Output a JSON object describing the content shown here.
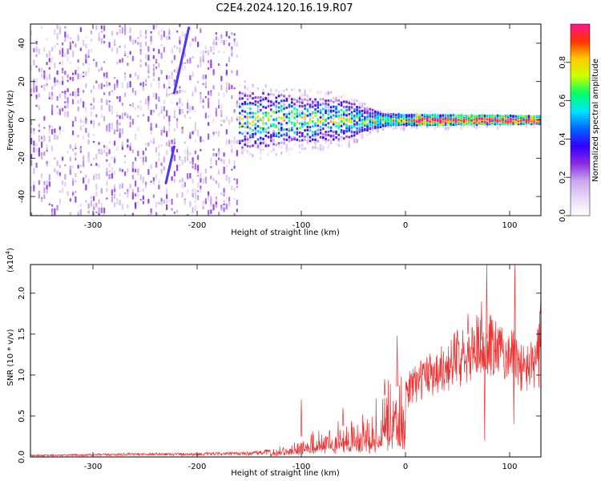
{
  "title": "C2E4.2024.120.16.19.R07",
  "chart_data": [
    {
      "type": "heatmap",
      "xlabel": "Height of straight line (km)",
      "ylabel": "Frequency (Hz)",
      "xlim": [
        -360,
        130
      ],
      "ylim": [
        -50,
        50
      ],
      "x_ticks": [
        -300,
        -200,
        -100,
        0,
        100
      ],
      "y_ticks": [
        -40,
        -20,
        0,
        20,
        40
      ],
      "colorbar": {
        "label": "Normalized spectral amplitude",
        "range": [
          0.0,
          1.0
        ],
        "ticks": [
          0.0,
          0.2,
          0.4,
          0.6,
          0.8
        ],
        "colormap": [
          "#ffffff",
          "#e8d8f6",
          "#c9a6ee",
          "#8a2be2",
          "#3300ff",
          "#0066ff",
          "#00e5ff",
          "#00ff66",
          "#ccff00",
          "#ffcc00",
          "#ff3300",
          "#ff1493"
        ]
      },
      "features": {
        "noise_region_x": [
          -360,
          -160
        ],
        "signal_band_center_hz": 0,
        "signal_band_halfwidth_hz": [
          [
            -160,
            15
          ],
          [
            -60,
            10
          ],
          [
            -20,
            3
          ],
          [
            130,
            2
          ]
        ],
        "streaks": [
          {
            "x": [
              -208,
              -222
            ],
            "y": [
              48,
              14
            ]
          },
          {
            "x": [
              -222,
              -230
            ],
            "y": [
              -14,
              -33
            ]
          }
        ]
      }
    },
    {
      "type": "line",
      "xlabel": "Height of straight line (km)",
      "ylabel": "SNR (10 * v/v)",
      "y_exponent_label": "(x10",
      "y_exponent_power": "4",
      "y_exponent_close": ")",
      "xlim": [
        -360,
        130
      ],
      "ylim": [
        0,
        2.35
      ],
      "x_ticks": [
        -300,
        -200,
        -100,
        0,
        100
      ],
      "y_ticks": [
        "0.0",
        "0.5",
        "1.0",
        "1.5",
        "2.0"
      ],
      "color": "#ee3333",
      "grid": false,
      "series": [
        {
          "x": [
            -360,
            -300,
            -250,
            -200,
            -150,
            -125,
            -115,
            -100,
            -90,
            -80,
            -70,
            -60,
            -50,
            -40,
            -30,
            -20,
            -15,
            -10,
            -5,
            0,
            5,
            10,
            20,
            30,
            40,
            50,
            60,
            70,
            76,
            80,
            85,
            90,
            100,
            105,
            110,
            115,
            120,
            125,
            130
          ],
          "y": [
            0.02,
            0.03,
            0.04,
            0.04,
            0.05,
            0.08,
            0.15,
            0.25,
            0.3,
            0.28,
            0.35,
            0.38,
            0.4,
            0.45,
            0.6,
            0.75,
            0.9,
            0.85,
            0.88,
            0.85,
            1.0,
            1.05,
            1.15,
            1.2,
            1.25,
            1.4,
            1.5,
            1.55,
            1.3,
            1.6,
            1.5,
            1.45,
            1.45,
            1.35,
            1.25,
            1.2,
            1.3,
            1.25,
            1.75
          ],
          "peaks": [
            [
              -100,
              0.7
            ],
            [
              -60,
              0.6
            ],
            [
              -20,
              0.95
            ],
            [
              -8,
              1.48
            ],
            [
              60,
              1.75
            ],
            [
              73,
              1.9
            ],
            [
              78,
              2.35
            ],
            [
              90,
              1.55
            ],
            [
              105,
              2.35
            ],
            [
              130,
              1.95
            ]
          ],
          "dips": [
            [
              76,
              0.2
            ],
            [
              104,
              0.4
            ],
            [
              128,
              0.85
            ]
          ]
        }
      ]
    }
  ]
}
